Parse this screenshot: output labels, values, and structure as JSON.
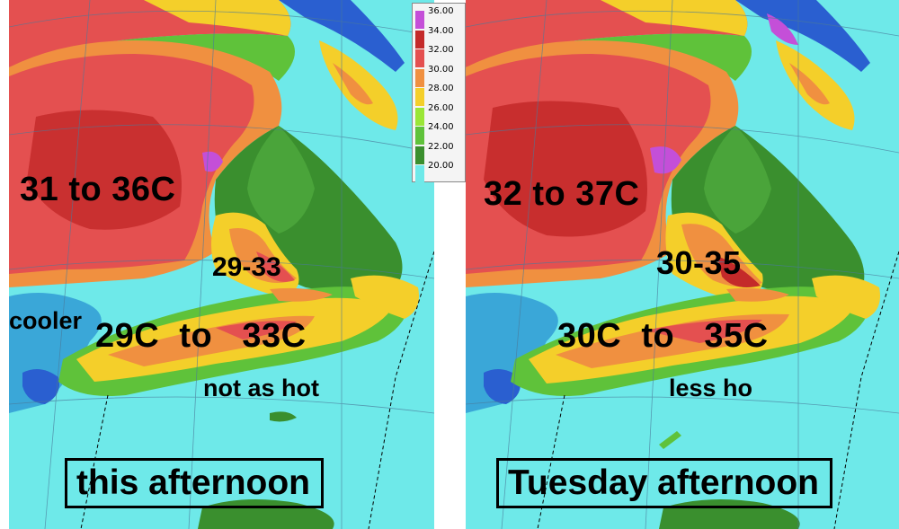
{
  "legend": {
    "ticks": [
      "36.00",
      "34.00",
      "32.00",
      "30.00",
      "28.00",
      "26.00",
      "24.00",
      "22.00",
      "20.00"
    ],
    "colors": [
      "#c44fd8",
      "#c42a2a",
      "#e45050",
      "#f09040",
      "#f4cf2a",
      "#9ae636",
      "#5fc23a",
      "#3a8f2e",
      "#6ee9e9"
    ]
  },
  "left_panel": {
    "title": "this afternoon",
    "labels": {
      "interior": "31 to 36C",
      "middle": "29-33",
      "west": "cooler",
      "south": "29C  to   33C",
      "coast": "not as hot"
    }
  },
  "right_panel": {
    "title": "Tuesday afternoon",
    "labels": {
      "interior": "32 to 37C",
      "middle": "30-35",
      "south": "30C  to   35C",
      "coast": "less ho"
    }
  },
  "colors": {
    "water": "#6ee9e9",
    "cool_land": "#3a8f2e",
    "warm_land": "#e45050",
    "hot_core": "#c42a2a",
    "orange": "#f09040",
    "yellow": "#f4cf2a",
    "deep_blue": "#2a5fd0",
    "purple": "#c44fd8"
  }
}
